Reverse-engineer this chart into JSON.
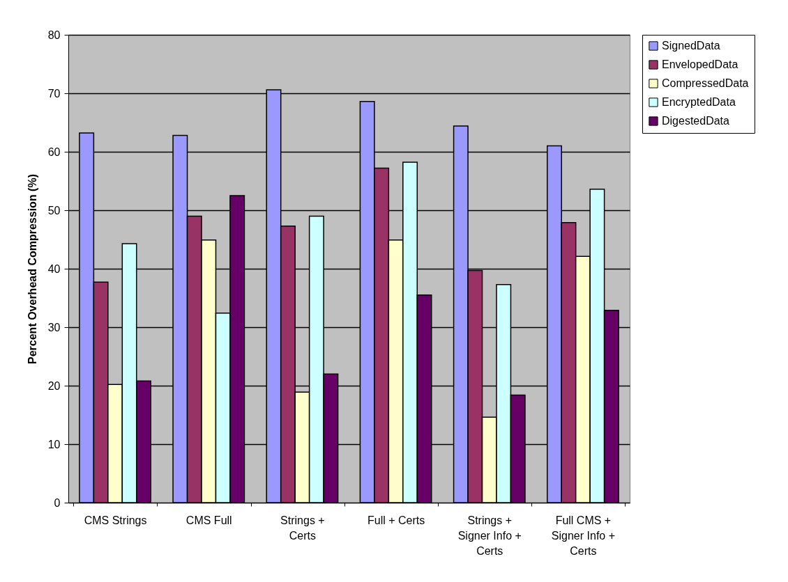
{
  "chart_data": {
    "type": "bar",
    "ylabel": "Percent Overhead Compression (%)",
    "categories": [
      "CMS Strings",
      "CMS Full",
      "Strings + Certs",
      "Full + Certs",
      "Strings + Signer Info + Certs",
      "Full CMS + Signer Info + Certs"
    ],
    "series": [
      {
        "name": "SignedData",
        "color": "#9999ff",
        "values": [
          63.2,
          62.8,
          70.6,
          68.6,
          64.4,
          61.0
        ]
      },
      {
        "name": "EnvelopedData",
        "color": "#993366",
        "values": [
          37.7,
          49.0,
          47.3,
          57.2,
          39.7,
          47.9
        ]
      },
      {
        "name": "CompressedData",
        "color": "#ffffcc",
        "values": [
          20.2,
          44.9,
          18.9,
          44.9,
          14.6,
          42.1
        ]
      },
      {
        "name": "EncryptedData",
        "color": "#ccffff",
        "values": [
          44.3,
          32.4,
          49.0,
          58.2,
          37.3,
          53.6
        ]
      },
      {
        "name": "DigestedData",
        "color": "#660066",
        "values": [
          20.8,
          52.5,
          22.0,
          35.5,
          18.4,
          32.9
        ]
      }
    ],
    "ylim": [
      0,
      80
    ],
    "yticks": [
      0,
      10,
      20,
      30,
      40,
      50,
      60,
      70,
      80
    ],
    "grid": "y",
    "legend": "right"
  }
}
